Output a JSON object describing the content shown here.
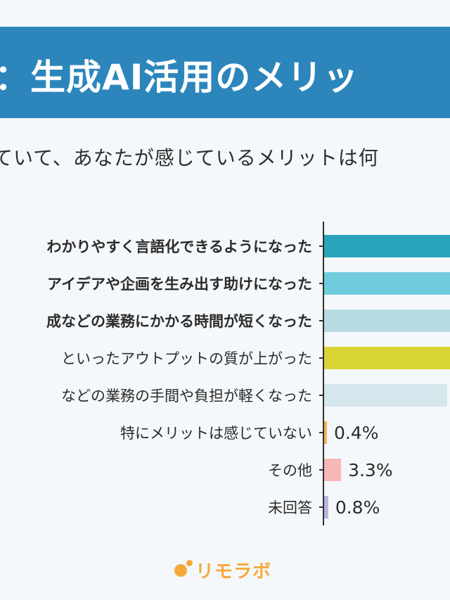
{
  "header": {
    "title": "：生成AI活用のメリッ",
    "subtitle": "ていて、あなたが感じているメリットは何"
  },
  "chart_data": {
    "type": "bar",
    "orientation": "horizontal",
    "categories": [
      "わかりやすく言語化できるようになった",
      "アイデアや企画を生み出す助けになった",
      "成などの業務にかかる時間が短くなった",
      "といったアウトプットの質が上がった",
      "などの業務の手間や負担が軽くなった",
      "特にメリットは感じていない",
      "その他",
      "未回答"
    ],
    "values": [
      null,
      null,
      null,
      null,
      null,
      0.4,
      3.3,
      0.8
    ],
    "value_labels": [
      "",
      "",
      "",
      "",
      "",
      "0.4%",
      "3.3%",
      "0.8%"
    ],
    "bold_categories": [
      true,
      true,
      true,
      false,
      false,
      false,
      false,
      false
    ],
    "colors": [
      "#2aa3bd",
      "#6fcbdc",
      "#b6dbe2",
      "#d8d436",
      "#d5e7ed",
      "#f0b55e",
      "#f7b7b7",
      "#b9b2dc"
    ]
  },
  "logo": {
    "text": "リモラボ"
  }
}
